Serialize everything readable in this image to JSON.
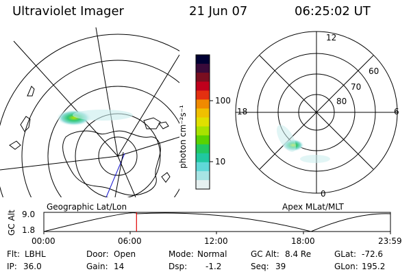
{
  "header": {
    "title": "Ultraviolet Imager",
    "date": "21 Jun 07",
    "time": "06:25:02 UT"
  },
  "colorbar": {
    "unit_label": "photon cm⁻²s⁻¹",
    "ticks": [
      "100",
      "10"
    ],
    "colors": [
      "#000033",
      "#3a0a3a",
      "#7a0e20",
      "#c0001c",
      "#e33010",
      "#f08a00",
      "#f0c000",
      "#e0e000",
      "#a8e200",
      "#5ad200",
      "#22c860",
      "#20c8a0",
      "#60d8d8",
      "#a8e4e4",
      "#e6f0f0"
    ]
  },
  "left_map": {
    "label": "Geographic Lat/Lon"
  },
  "right_map": {
    "label": "Apex MLat/MLT",
    "mlt_labels": [
      "12",
      "18",
      "6",
      "0"
    ],
    "lat_labels": [
      "60",
      "70",
      "80"
    ]
  },
  "timeline": {
    "axis_title": "GC Alt",
    "y_ticks": [
      "9.0",
      "1.8"
    ],
    "x_ticks": [
      "00:00",
      "06:00",
      "12:00",
      "18:00",
      "23:59"
    ],
    "current_time_fraction": 0.2674
  },
  "info": {
    "flt_label": "Flt:",
    "flt_value": "LBHL",
    "ip_label": "IP:",
    "ip_value": "36.0",
    "door_label": "Door:",
    "door_value": "Open",
    "gain_label": "Gain:",
    "gain_value": "14",
    "mode_label": "Mode:",
    "mode_value": "Normal",
    "dsp_label": "Dsp:",
    "dsp_value": "-1.2",
    "gcalt_label": "GC Alt:",
    "gcalt_value": "8.4 Re",
    "seq_label": "Seq:",
    "seq_value": "39",
    "glat_label": "GLat:",
    "glat_value": "-72.6",
    "glon_label": "GLon:",
    "glon_value": "195.2"
  }
}
